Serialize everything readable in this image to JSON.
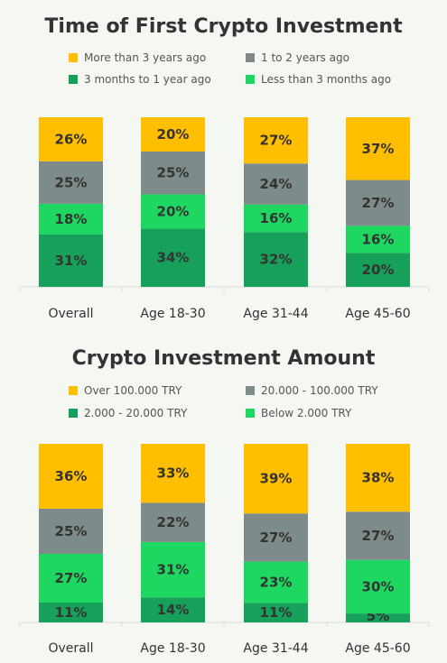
{
  "chart_data": [
    {
      "type": "bar",
      "stacked": true,
      "title": "Time of First Crypto Investment",
      "categories": [
        "Overall",
        "Age 18-30",
        "Age 31-44",
        "Age 45-60"
      ],
      "series": [
        {
          "name": "3 months to 1 year ago",
          "color": "#17a05a",
          "values": [
            31,
            34,
            32,
            20
          ]
        },
        {
          "name": "Less than 3 months ago",
          "color": "#1ed760",
          "values": [
            18,
            20,
            16,
            16
          ]
        },
        {
          "name": "1 to 2 years ago",
          "color": "#7d8b8a",
          "values": [
            25,
            25,
            24,
            27
          ]
        },
        {
          "name": "More than 3 years ago",
          "color": "#ffbf00",
          "values": [
            26,
            20,
            27,
            37
          ]
        }
      ],
      "legend_order": [
        3,
        2,
        0,
        1
      ],
      "value_suffix": "%",
      "ylim": [
        0,
        100
      ],
      "grid": false
    },
    {
      "type": "bar",
      "stacked": true,
      "title": "Crypto Investment Amount",
      "categories": [
        "Overall",
        "Age 18-30",
        "Age 31-44",
        "Age 45-60"
      ],
      "series": [
        {
          "name": "2.000 - 20.000 TRY",
          "color": "#17a05a",
          "values": [
            11,
            14,
            11,
            5
          ]
        },
        {
          "name": "Below 2.000 TRY",
          "color": "#1ed760",
          "values": [
            27,
            31,
            23,
            30
          ]
        },
        {
          "name": "20.000 - 100.000 TRY",
          "color": "#7d8b8a",
          "values": [
            25,
            22,
            27,
            27
          ]
        },
        {
          "name": "Over 100.000 TRY",
          "color": "#ffbf00",
          "values": [
            36,
            33,
            39,
            38
          ]
        }
      ],
      "legend_order": [
        3,
        2,
        0,
        1
      ],
      "value_suffix": "%",
      "ylim": [
        0,
        100
      ],
      "grid": false
    }
  ]
}
